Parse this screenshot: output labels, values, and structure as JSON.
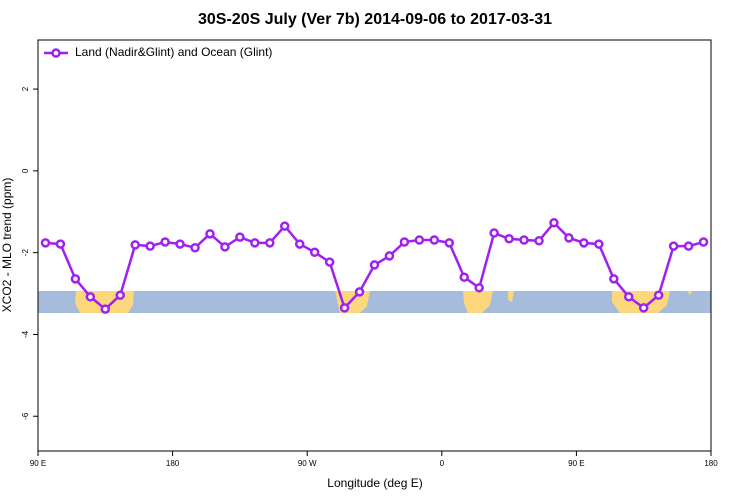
{
  "chart_data": {
    "type": "line",
    "title": "30S-20S July (Ver 7b)   2014-09-06 to 2017-03-31",
    "x_label": "Longitude (deg E)",
    "y_label": "XCO2 - MLO trend (ppm)",
    "x": [
      95,
      105,
      115,
      125,
      135,
      145,
      155,
      165,
      175,
      185,
      195,
      205,
      215,
      225,
      235,
      245,
      255,
      265,
      275,
      285,
      295,
      305,
      315,
      325,
      335,
      345,
      355,
      365,
      375,
      385,
      395,
      405,
      415,
      425,
      435,
      445,
      455,
      465,
      475,
      485,
      495,
      505,
      515,
      525,
      535
    ],
    "series": [
      {
        "name": "Land (Nadir&Glint) and Ocean (Glint)",
        "color": "#a020f0",
        "values": [
          -1.76,
          -1.79,
          -2.64,
          -3.08,
          -3.38,
          -3.04,
          -1.81,
          -1.84,
          -1.74,
          -1.79,
          -1.88,
          -1.54,
          -1.86,
          -1.62,
          -1.76,
          -1.76,
          -1.35,
          -1.79,
          -1.99,
          -2.23,
          -3.35,
          -2.96,
          -2.3,
          -2.08,
          -1.74,
          -1.69,
          -1.69,
          -1.76,
          -2.6,
          -2.86,
          -1.52,
          -1.66,
          -1.69,
          -1.71,
          -1.27,
          -1.64,
          -1.76,
          -1.79,
          -2.64,
          -3.08,
          -3.35,
          -3.04,
          -1.84,
          -1.84,
          -1.74
        ]
      }
    ],
    "xlim": [
      90,
      540
    ],
    "xticks": [
      {
        "value": 90,
        "label": "90 E"
      },
      {
        "value": 180,
        "label": "180"
      },
      {
        "value": 270,
        "label": "90 W"
      },
      {
        "value": 360,
        "label": "0"
      },
      {
        "value": 450,
        "label": "90 E"
      },
      {
        "value": 540,
        "label": "180"
      }
    ],
    "ylim": [
      -6.85,
      3.2
    ],
    "yticks": [
      -6,
      -4,
      -2,
      0,
      2
    ],
    "legend": "top-left"
  }
}
